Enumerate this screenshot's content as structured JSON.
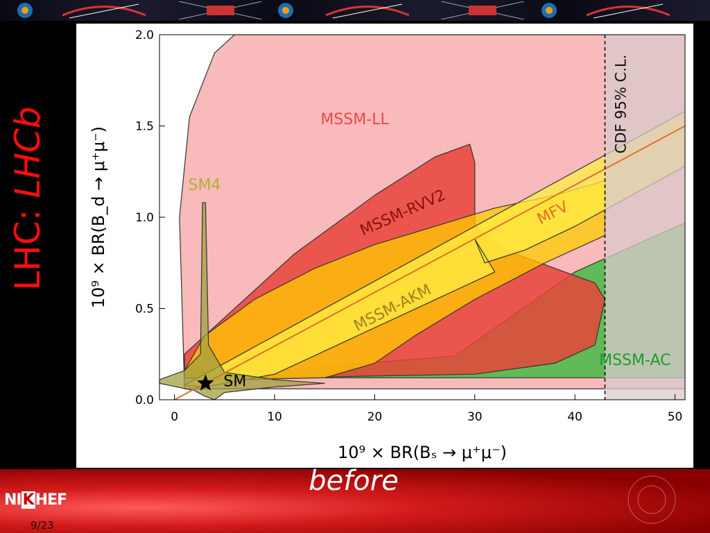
{
  "slide": {
    "title_main": "LHC: ",
    "title_emph": "LHCb",
    "caption": "before",
    "page": "9/23",
    "logo": [
      "NI",
      "K",
      "HEF"
    ]
  },
  "colors": {
    "title": "#ff0d0d",
    "mssm_ll": "#f7b3b3",
    "mssm_rvv2": "#e8443a",
    "mssm_akm": "#ffcc00",
    "mfv": "#ffee44",
    "sm4": "#a0a040",
    "mssm_ac": "#46b846",
    "cdf_region": "#d9c9cc",
    "mfv_line": "#e0702a"
  },
  "chart_data": {
    "type": "region-plot",
    "xlabel": "10⁹ × BR(Bₛ → μ⁺μ⁻)",
    "ylabel": "10⁹ × BR(B_d → μ⁺μ⁻)",
    "xlim": [
      -1.5,
      51
    ],
    "ylim": [
      0,
      2.0
    ],
    "x_ticks": [
      0,
      10,
      20,
      30,
      40,
      50
    ],
    "y_ticks": [
      "0.0",
      "0.5",
      "1.0",
      "1.5",
      "2.0"
    ],
    "cdf_limit": {
      "x": 43,
      "label": "CDF 95% C.L."
    },
    "regions": [
      {
        "name": "MSSM-LL",
        "label_xy": [
          18,
          1.51
        ],
        "label_angle": 0,
        "polygon": [
          [
            1,
            0.06
          ],
          [
            0.5,
            1.0
          ],
          [
            1.5,
            1.55
          ],
          [
            4,
            1.9
          ],
          [
            6,
            2.0
          ],
          [
            51,
            2.0
          ],
          [
            51,
            0.06
          ]
        ]
      },
      {
        "name": "MSSM-AC",
        "label_xy": [
          46,
          0.19
        ],
        "label_angle": 0,
        "polygon": [
          [
            1,
            0.12
          ],
          [
            1,
            0.14
          ],
          [
            10,
            0.16
          ],
          [
            28,
            0.24
          ],
          [
            40,
            0.7
          ],
          [
            51,
            0.97
          ],
          [
            51,
            0.12
          ]
        ]
      },
      {
        "name": "MSSM-RVV2",
        "label_xy": [
          23,
          1.0
        ],
        "label_angle": -24,
        "polygon": [
          [
            1,
            0.25
          ],
          [
            5,
            0.45
          ],
          [
            12,
            0.8
          ],
          [
            20,
            1.12
          ],
          [
            26,
            1.33
          ],
          [
            29.5,
            1.4
          ],
          [
            30,
            1.3
          ],
          [
            30,
            0.95
          ],
          [
            33,
            0.82
          ],
          [
            38,
            0.72
          ],
          [
            42,
            0.64
          ],
          [
            43,
            0.55
          ],
          [
            42,
            0.3
          ],
          [
            38,
            0.2
          ],
          [
            30,
            0.14
          ],
          [
            10,
            0.12
          ],
          [
            1,
            0.12
          ]
        ]
      },
      {
        "name": "MSSM-AKM",
        "label_xy": [
          22,
          0.48
        ],
        "label_angle": -27,
        "polygon": [
          [
            1,
            0.16
          ],
          [
            3,
            0.35
          ],
          [
            8,
            0.55
          ],
          [
            14,
            0.72
          ],
          [
            20,
            0.85
          ],
          [
            26,
            0.95
          ],
          [
            32,
            1.05
          ],
          [
            38,
            1.12
          ],
          [
            43,
            1.2
          ],
          [
            43,
            0.9
          ],
          [
            37,
            0.75
          ],
          [
            30,
            0.55
          ],
          [
            24,
            0.35
          ],
          [
            20,
            0.2
          ],
          [
            15,
            0.12
          ],
          [
            6,
            0.11
          ],
          [
            1,
            0.12
          ]
        ]
      },
      {
        "name": "MFV",
        "label_xy": [
          38,
          1.0
        ],
        "label_angle": -27,
        "polygon": [
          [
            1,
            0.08
          ],
          [
            51,
            1.58
          ],
          [
            51,
            1.28
          ],
          [
            45,
            1.1
          ],
          [
            40,
            0.95
          ],
          [
            35,
            0.82
          ],
          [
            31,
            0.75
          ],
          [
            30,
            0.88
          ],
          [
            32,
            0.7
          ],
          [
            10,
            0.14
          ],
          [
            3,
            0.07
          ]
        ]
      },
      {
        "name": "SM4",
        "label_xy": [
          3,
          1.15
        ],
        "label_angle": 0,
        "polygon": [
          [
            -1.5,
            0.11
          ],
          [
            1,
            0.16
          ],
          [
            2.6,
            0.25
          ],
          [
            2.8,
            1.08
          ],
          [
            3.1,
            1.08
          ],
          [
            3.4,
            0.3
          ],
          [
            5,
            0.15
          ],
          [
            10,
            0.11
          ],
          [
            15,
            0.09
          ],
          [
            10,
            0.07
          ],
          [
            5,
            0.04
          ],
          [
            4,
            0.0
          ],
          [
            3,
            0.02
          ],
          [
            2,
            0.05
          ],
          [
            -1.5,
            0.09
          ]
        ]
      }
    ],
    "mfv_line": [
      [
        0,
        0.0
      ],
      [
        51,
        1.5
      ]
    ],
    "sm_point": {
      "name": "SM",
      "x": 3.1,
      "y": 0.09
    }
  }
}
